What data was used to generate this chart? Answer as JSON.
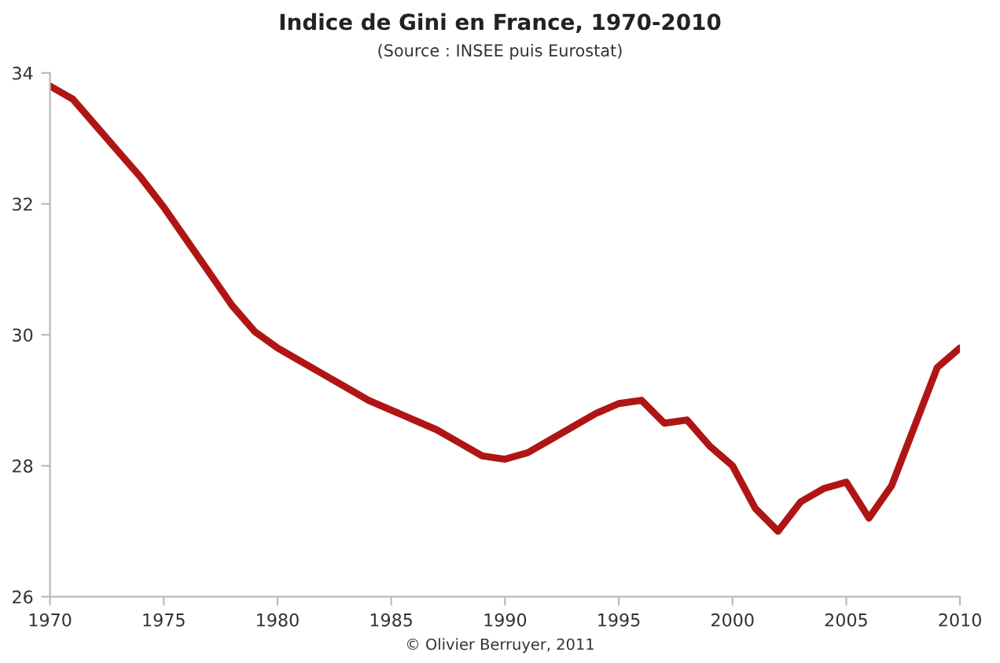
{
  "chart_data": {
    "type": "line",
    "title": "Indice de Gini en France, 1970-2010",
    "subtitle": "(Source : INSEE puis Eurostat)",
    "annotations": [
      "© Olivier Berruyer, 2011"
    ],
    "x": [
      1970,
      1971,
      1972,
      1973,
      1974,
      1975,
      1976,
      1977,
      1978,
      1979,
      1980,
      1981,
      1982,
      1983,
      1984,
      1985,
      1986,
      1987,
      1988,
      1989,
      1990,
      1991,
      1992,
      1993,
      1994,
      1995,
      1996,
      1997,
      1998,
      1999,
      2000,
      2001,
      2002,
      2003,
      2004,
      2005,
      2006,
      2007,
      2008,
      2009,
      2010
    ],
    "series": [
      {
        "color": "#b01515",
        "values": [
          33.8,
          33.6,
          33.2,
          32.8,
          32.4,
          31.95,
          31.45,
          30.95,
          30.45,
          30.05,
          29.8,
          29.6,
          29.4,
          29.2,
          29.0,
          28.85,
          28.7,
          28.55,
          28.35,
          28.15,
          28.1,
          28.2,
          28.4,
          28.6,
          28.8,
          28.95,
          29.0,
          28.65,
          28.7,
          28.3,
          28.0,
          27.35,
          27.0,
          27.45,
          27.65,
          27.75,
          27.2,
          27.7,
          28.6,
          29.5,
          29.8
        ]
      }
    ],
    "xlim": [
      1970,
      2010
    ],
    "xticks": [
      1970,
      1975,
      1980,
      1985,
      1990,
      1995,
      2000,
      2005,
      2010
    ],
    "ylim": [
      26,
      34
    ],
    "yticks": [
      26,
      28,
      30,
      32,
      34
    ],
    "grid": false,
    "legend": false,
    "marker": "none",
    "line_style": "solid"
  }
}
